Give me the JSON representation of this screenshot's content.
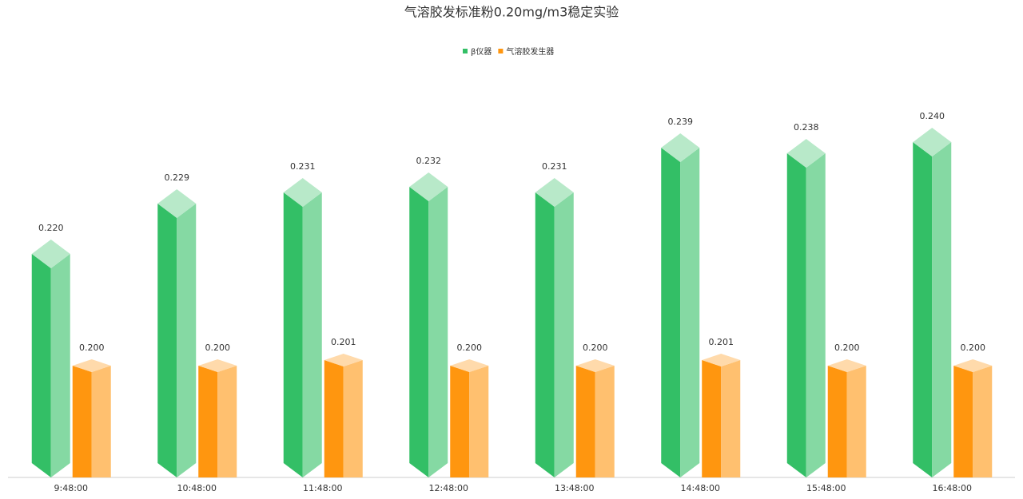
{
  "chart_data": {
    "type": "bar",
    "title": "气溶胶发标准粉0.20mg/m3稳定实验",
    "categories": [
      "9:48:00",
      "10:48:00",
      "11:48:00",
      "12:48:00",
      "13:48:00",
      "14:48:00",
      "15:48:00",
      "16:48:00"
    ],
    "series": [
      {
        "name": "β仪器",
        "color": "#33bf66",
        "values": [
          0.22,
          0.229,
          0.231,
          0.232,
          0.231,
          0.239,
          0.238,
          0.24
        ],
        "value_labels": [
          "0.220",
          "0.229",
          "0.231",
          "0.232",
          "0.231",
          "0.239",
          "0.238",
          "0.240"
        ]
      },
      {
        "name": "气溶胶发生器",
        "color": "#ff960f",
        "values": [
          0.2,
          0.2,
          0.201,
          0.2,
          0.2,
          0.201,
          0.2,
          0.2
        ],
        "value_labels": [
          "0.200",
          "0.200",
          "0.201",
          "0.200",
          "0.200",
          "0.201",
          "0.200",
          "0.200"
        ]
      }
    ],
    "ylim": [
      0.18,
      0.25
    ],
    "legend": "top"
  }
}
